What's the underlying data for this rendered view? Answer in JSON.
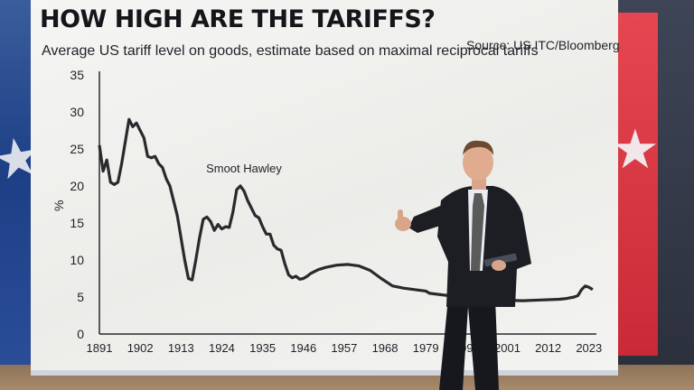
{
  "title": "HOW HIGH ARE THE TARIFFS?",
  "source": "Source: US ITC/Bloomberg",
  "chart_data": {
    "type": "line",
    "title": "HOW HIGH ARE THE TARIFFS?",
    "subtitle": "Average US tariff level on goods, estimate based on maximal reciprocal tariffs",
    "ylabel": "%",
    "xlabel": "",
    "ylim": [
      0,
      35
    ],
    "xlim": [
      1891,
      2025
    ],
    "yticks": [
      0,
      5,
      10,
      15,
      20,
      25,
      30,
      35
    ],
    "xticks": [
      "1891",
      "1902",
      "1913",
      "1924",
      "1935",
      "1946",
      "1957",
      "1968",
      "1979",
      "1990",
      "2001",
      "2012",
      "2023"
    ],
    "grid": false,
    "annotations": [
      {
        "text": "Smoot Hawley",
        "x": 1930,
        "y": 21.8
      }
    ],
    "series": [
      {
        "x": [
          1891,
          1892,
          1893,
          1894,
          1895,
          1896,
          1897,
          1898,
          1899,
          1900,
          1901,
          1902,
          1903,
          1904,
          1905,
          1906,
          1907,
          1908,
          1909,
          1910,
          1911,
          1912,
          1913,
          1914,
          1915,
          1916,
          1917,
          1918,
          1919,
          1920,
          1921,
          1922,
          1923,
          1924,
          1925,
          1926,
          1927,
          1928,
          1929,
          1930,
          1931,
          1932,
          1933,
          1934,
          1935,
          1936,
          1937,
          1938,
          1939,
          1940,
          1941,
          1942,
          1943,
          1944,
          1945,
          1946,
          1947,
          1948,
          1950,
          1952,
          1955,
          1958,
          1961,
          1964,
          1967,
          1970,
          1973,
          1976,
          1979,
          1980,
          1985,
          1990,
          1995,
          2000,
          2005,
          2010,
          2015,
          2017,
          2019,
          2020,
          2021,
          2022,
          2023,
          2024
        ],
        "y": [
          25.5,
          22,
          23.5,
          20.5,
          20.2,
          20.5,
          23,
          26,
          29,
          28,
          28.5,
          27.5,
          26.5,
          24,
          23.8,
          24,
          23,
          22.5,
          21,
          20,
          18,
          16,
          13,
          10,
          7.5,
          7.3,
          10,
          13,
          15.5,
          15.8,
          15.2,
          14,
          14.8,
          14.2,
          14.5,
          14.4,
          16.5,
          19.5,
          20,
          19.3,
          18,
          17,
          16,
          15.7,
          14.5,
          13.5,
          13.5,
          12,
          11.5,
          11.3,
          9.5,
          8,
          7.6,
          7.8,
          7.4,
          7.5,
          7.8,
          8.2,
          8.7,
          9,
          9.3,
          9.4,
          9.2,
          8.6,
          7.5,
          6.5,
          6.2,
          6,
          5.8,
          5.5,
          5.2,
          5,
          4.8,
          4.6,
          4.5,
          4.6,
          4.7,
          4.8,
          5,
          5.2,
          6,
          6.5,
          6.3,
          6
        ]
      }
    ]
  }
}
